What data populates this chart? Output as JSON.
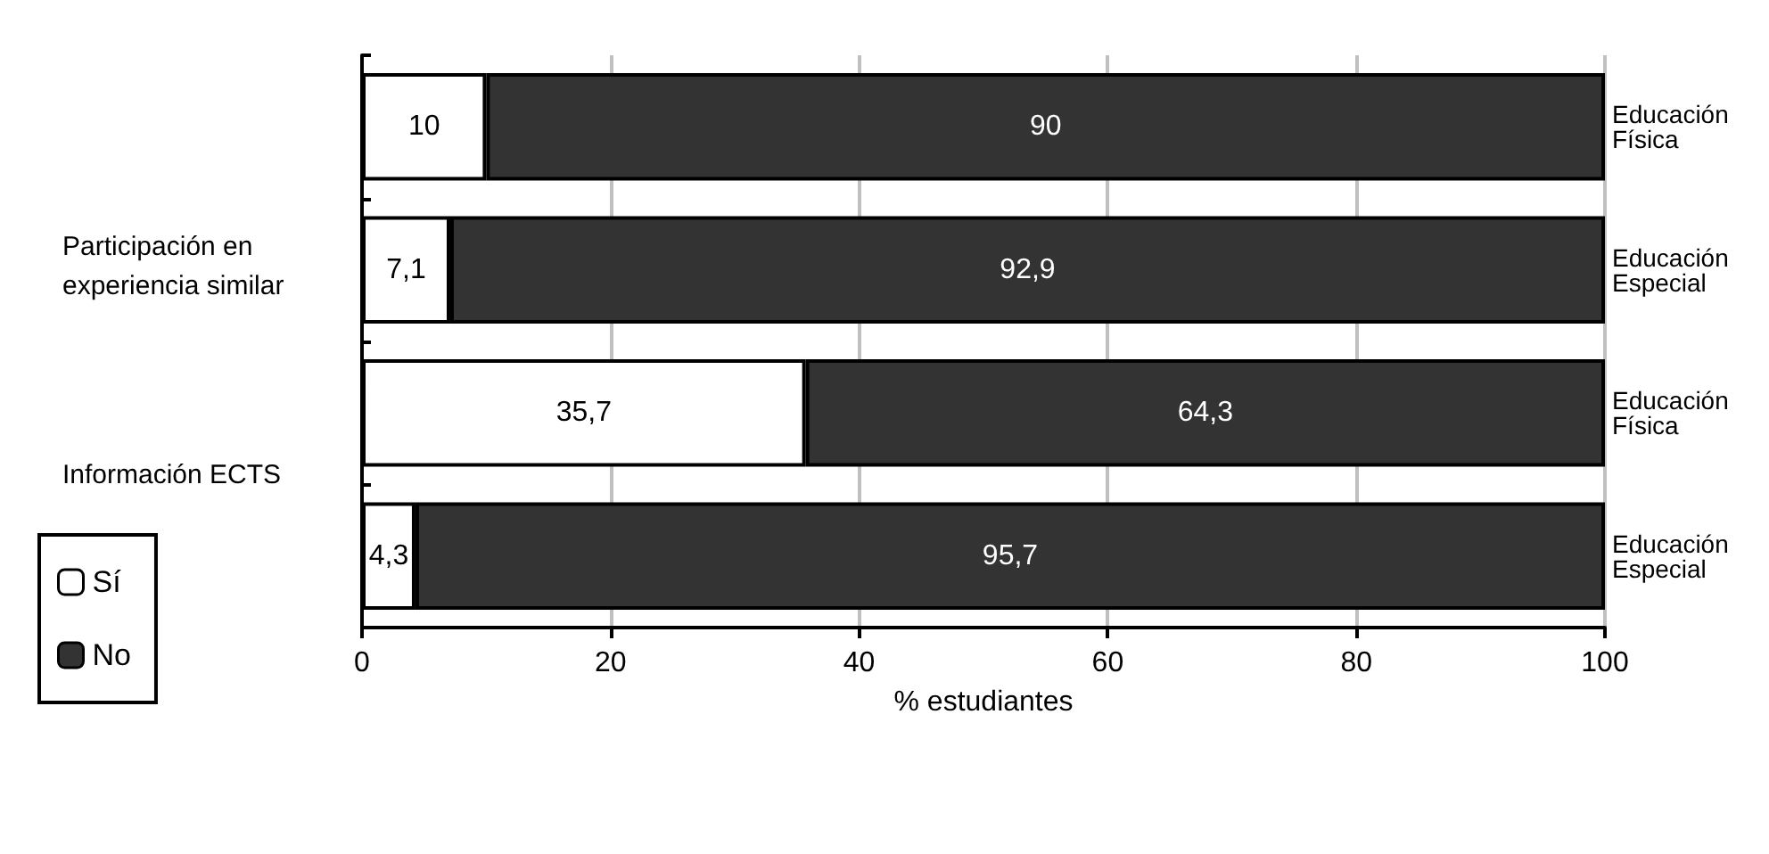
{
  "chart_data": {
    "type": "bar",
    "orientation": "horizontal",
    "stacked": true,
    "categories": [
      "Educación Física",
      "Educación Especial",
      "Educación Física",
      "Educación Especial"
    ],
    "series": [
      {
        "name": "Sí",
        "color": "#ffffff",
        "values": [
          10,
          7.1,
          35.7,
          4.3
        ],
        "value_labels": [
          "10",
          "7,1",
          "35,7",
          "4,3"
        ]
      },
      {
        "name": "No",
        "color": "#333333",
        "values": [
          90,
          92.9,
          64.3,
          95.7
        ],
        "value_labels": [
          "90",
          "92,9",
          "64,3",
          "95,7"
        ]
      }
    ],
    "xlabel": "% estudiantes",
    "annotations": [
      "Participación en experiencia similar",
      "Información ECTS"
    ],
    "xlim": [
      0,
      100
    ],
    "xticks": [
      0,
      20,
      40,
      60,
      80,
      100
    ],
    "grid": "x",
    "legend": "bottom left"
  }
}
